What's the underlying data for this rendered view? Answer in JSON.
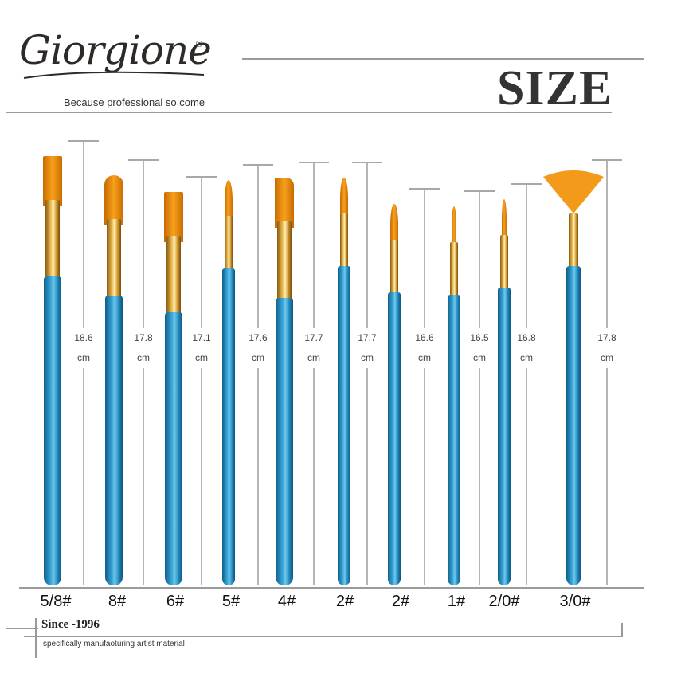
{
  "header": {
    "brand": "Giorgione",
    "registered": "®",
    "tagline": "Because professional so come",
    "title": "SIZE"
  },
  "brushes": [
    {
      "size": "5/8#",
      "length": "18.6",
      "unit": "cm",
      "tip": "flat"
    },
    {
      "size": "8#",
      "length": "17.8",
      "unit": "cm",
      "tip": "filbert"
    },
    {
      "size": "6#",
      "length": "17.1",
      "unit": "cm",
      "tip": "flat"
    },
    {
      "size": "5#",
      "length": "17.6",
      "unit": "cm",
      "tip": "round"
    },
    {
      "size": "4#",
      "length": "17.7",
      "unit": "cm",
      "tip": "angled"
    },
    {
      "size": "2#",
      "length": "17.7",
      "unit": "cm",
      "tip": "round"
    },
    {
      "size": "2#",
      "length": "16.6",
      "unit": "cm",
      "tip": "round"
    },
    {
      "size": "1#",
      "length": "16.5",
      "unit": "cm",
      "tip": "liner"
    },
    {
      "size": "2/0#",
      "length": "16.8",
      "unit": "cm",
      "tip": "liner"
    },
    {
      "size": "3/0#",
      "length": "17.8",
      "unit": "cm",
      "tip": "fan"
    }
  ],
  "footer": {
    "since": "Since -1996",
    "subtitle": "specifically manufaoturing artist material"
  },
  "colors": {
    "handle": "#2f95c9",
    "ferrule": "#e0a93c",
    "bristle": "#f39a1a",
    "rule": "#9a9a9a"
  }
}
